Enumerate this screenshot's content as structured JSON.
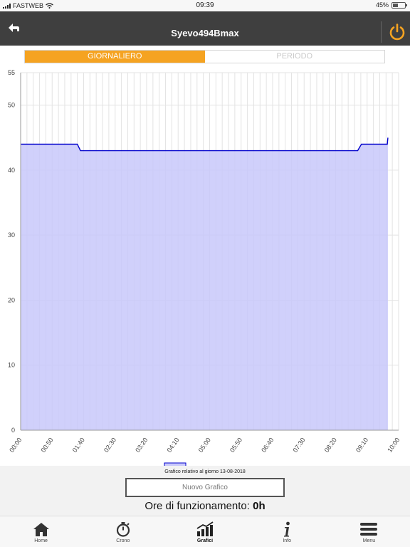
{
  "status_bar": {
    "carrier": "FASTWEB",
    "time": "09:39",
    "battery": "45%",
    "battery_level": 0.45
  },
  "header": {
    "title": "Syevo494Bmax",
    "accent": "#f5a321"
  },
  "tabs": [
    {
      "label": "GIORNALIERO",
      "active": true
    },
    {
      "label": "PERIODO",
      "active": false
    }
  ],
  "chart_data": {
    "type": "area",
    "x_ticks": [
      "00:00",
      "00:50",
      "01:40",
      "02:30",
      "03:20",
      "04:10",
      "05:00",
      "05:50",
      "06:40",
      "07:30",
      "08:20",
      "09:10",
      "10:00"
    ],
    "y_ticks": [
      "0",
      "10",
      "20",
      "30",
      "40",
      "50",
      "55"
    ],
    "ylim": [
      0,
      55
    ],
    "xlim_minutes": [
      0,
      600
    ],
    "series": [
      {
        "color": "#0000cc",
        "fill": "#c8c8fa",
        "points": [
          [
            0,
            44
          ],
          [
            90,
            44
          ],
          [
            95,
            43
          ],
          [
            535,
            43
          ],
          [
            541,
            44
          ],
          [
            582,
            44
          ],
          [
            588,
            45
          ],
          [
            600,
            45
          ]
        ]
      }
    ],
    "grid": true,
    "legend_position": "bottom"
  },
  "footer": {
    "caption": "Grafico relativo al giorno 13-08-2018",
    "new_chart_label": "Nuovo Grafico",
    "hours_label": "Ore di funzionamento:",
    "hours_value": "0h"
  },
  "tabbar": [
    {
      "label": "Home",
      "icon": "home-icon"
    },
    {
      "label": "Crono",
      "icon": "stopwatch-icon"
    },
    {
      "label": "Grafici",
      "icon": "chart-icon",
      "selected": true
    },
    {
      "label": "Info",
      "icon": "info-icon"
    },
    {
      "label": "Menu",
      "icon": "menu-icon"
    }
  ]
}
